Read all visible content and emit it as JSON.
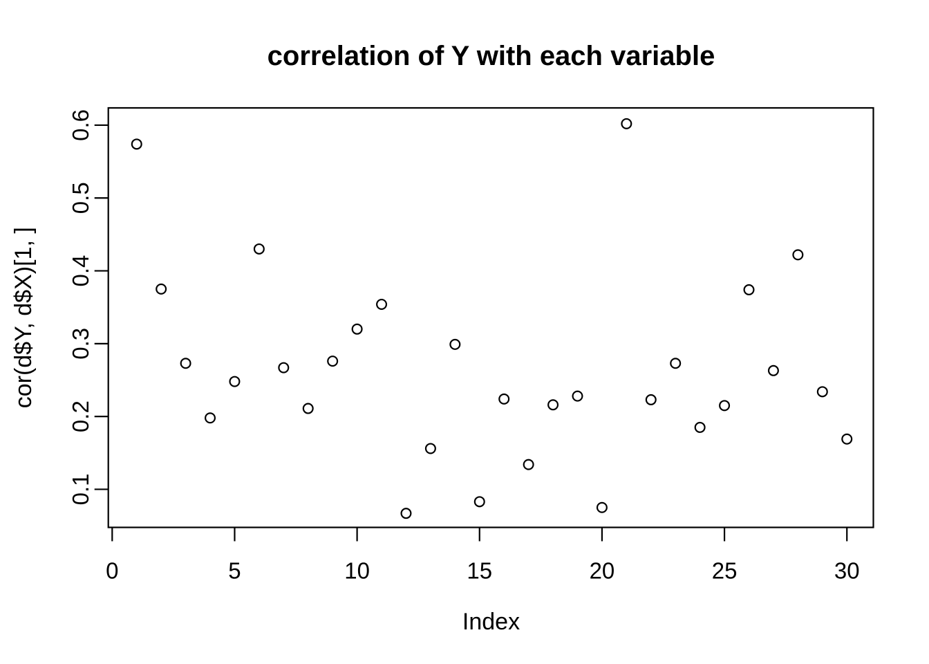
{
  "chart_data": {
    "type": "scatter",
    "title": "correlation of Y with each variable",
    "xlabel": "Index",
    "ylabel": "cor(d$Y, d$X)[1, ]",
    "x": [
      1,
      2,
      3,
      4,
      5,
      6,
      7,
      8,
      9,
      10,
      11,
      12,
      13,
      14,
      15,
      16,
      17,
      18,
      19,
      20,
      21,
      22,
      23,
      24,
      25,
      26,
      27,
      28,
      29,
      30
    ],
    "y": [
      0.574,
      0.375,
      0.273,
      0.198,
      0.248,
      0.43,
      0.267,
      0.211,
      0.276,
      0.32,
      0.354,
      0.067,
      0.156,
      0.299,
      0.083,
      0.224,
      0.134,
      0.216,
      0.228,
      0.075,
      0.602,
      0.223,
      0.273,
      0.185,
      0.215,
      0.374,
      0.263,
      0.422,
      0.234,
      0.169
    ],
    "x_ticks": [
      0,
      5,
      10,
      15,
      20,
      25,
      30
    ],
    "y_ticks": [
      0.1,
      0.2,
      0.3,
      0.4,
      0.5,
      0.6
    ],
    "xlim": [
      -0.158,
      31.08
    ],
    "ylim": [
      0.0477,
      0.6237
    ],
    "grid": false,
    "legend": "none",
    "marker": "open-circle",
    "marker_color": "#000000",
    "axis_color": "#000000",
    "background": "#ffffff"
  }
}
